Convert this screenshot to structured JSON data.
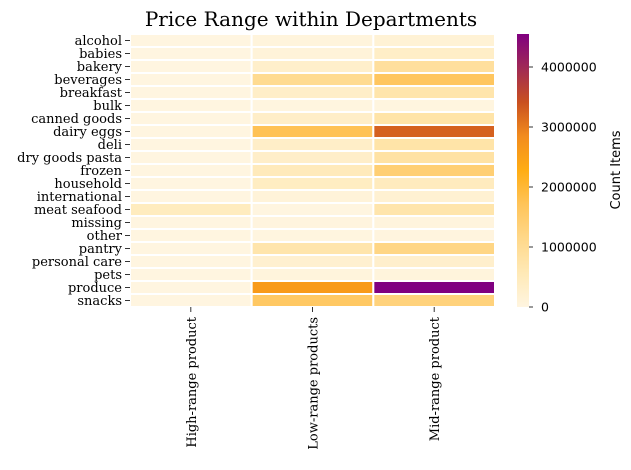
{
  "chart_data": {
    "type": "heatmap",
    "title": "Price Range within Departments",
    "rows": [
      "alcohol",
      "babies",
      "bakery",
      "beverages",
      "breakfast",
      "bulk",
      "canned goods",
      "dairy eggs",
      "deli",
      "dry goods pasta",
      "frozen",
      "household",
      "international",
      "meat seafood",
      "missing",
      "other",
      "pantry",
      "personal care",
      "pets",
      "produce",
      "snacks"
    ],
    "columns": [
      "High-range product",
      "Low-range products",
      "Mid-range product"
    ],
    "values": [
      [
        0,
        60000,
        150000
      ],
      [
        0,
        90000,
        340000
      ],
      [
        0,
        280000,
        890000
      ],
      [
        0,
        1050000,
        1650000
      ],
      [
        0,
        330000,
        700000
      ],
      [
        0,
        20000,
        20000
      ],
      [
        0,
        320000,
        750000
      ],
      [
        0,
        1750000,
        3250000
      ],
      [
        0,
        330000,
        750000
      ],
      [
        0,
        310000,
        800000
      ],
      [
        0,
        500000,
        1400000
      ],
      [
        0,
        400000,
        460000
      ],
      [
        0,
        90000,
        190000
      ],
      [
        450000,
        0,
        700000
      ],
      [
        0,
        25000,
        45000
      ],
      [
        0,
        10000,
        25000
      ],
      [
        0,
        700000,
        1200000
      ],
      [
        0,
        220000,
        270000
      ],
      [
        0,
        50000,
        60000
      ],
      [
        0,
        2600000,
        4550000
      ],
      [
        0,
        1600000,
        1300000
      ]
    ],
    "colorbar": {
      "label": "Count Items",
      "min": 0,
      "max": 4550000,
      "ticks": [
        "0",
        "1000000",
        "2000000",
        "3000000",
        "4000000"
      ],
      "colors": [
        "#fff5e0",
        "#ffe9b6",
        "#ffd88a",
        "#ffc45a",
        "#ffad14",
        "#f28c1e",
        "#c9501f",
        "#a02a55",
        "#800080"
      ]
    }
  }
}
